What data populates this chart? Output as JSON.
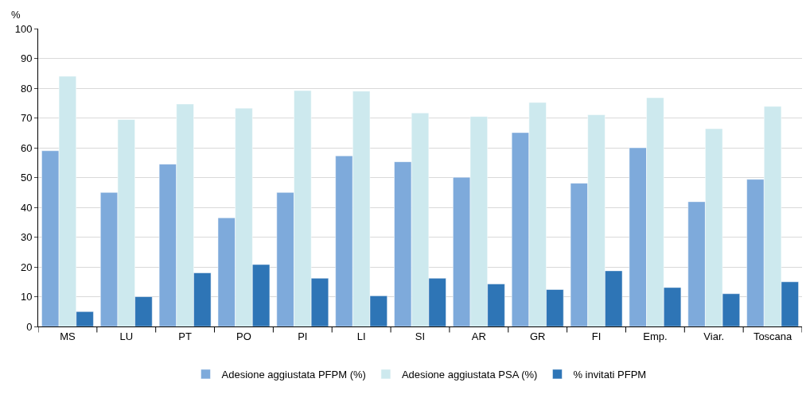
{
  "chart_data": {
    "type": "bar",
    "ylabel": "%",
    "categories": [
      "MS",
      "LU",
      "PT",
      "PO",
      "PI",
      "LI",
      "SI",
      "AR",
      "GR",
      "FI",
      "Emp.",
      "Viar.",
      "Toscana"
    ],
    "series": [
      {
        "name": "Adesione aggiustata PFPM (%)",
        "color": "#7eaadb",
        "values": [
          59,
          45,
          54.5,
          36.5,
          45,
          57.3,
          55.3,
          50.1,
          65.1,
          48.1,
          60,
          41.9,
          49.4
        ]
      },
      {
        "name": "Adesione aggiustata PSA (%)",
        "color": "#cde9ee",
        "values": [
          84,
          69.5,
          74.7,
          73.3,
          79.2,
          79,
          71.7,
          70.5,
          75.2,
          71.1,
          76.8,
          66.4,
          73.9
        ]
      },
      {
        "name": "% invitati PFPM",
        "color": "#2e75b6",
        "values": [
          5,
          10,
          18,
          20.8,
          16.2,
          10.3,
          16.2,
          14.3,
          12.4,
          18.7,
          13.1,
          11,
          15
        ]
      }
    ],
    "ylim": [
      0,
      100
    ],
    "yticks": [
      0,
      10,
      20,
      30,
      40,
      50,
      60,
      70,
      80,
      90,
      100
    ],
    "grid": "y",
    "legend": "bottom"
  }
}
